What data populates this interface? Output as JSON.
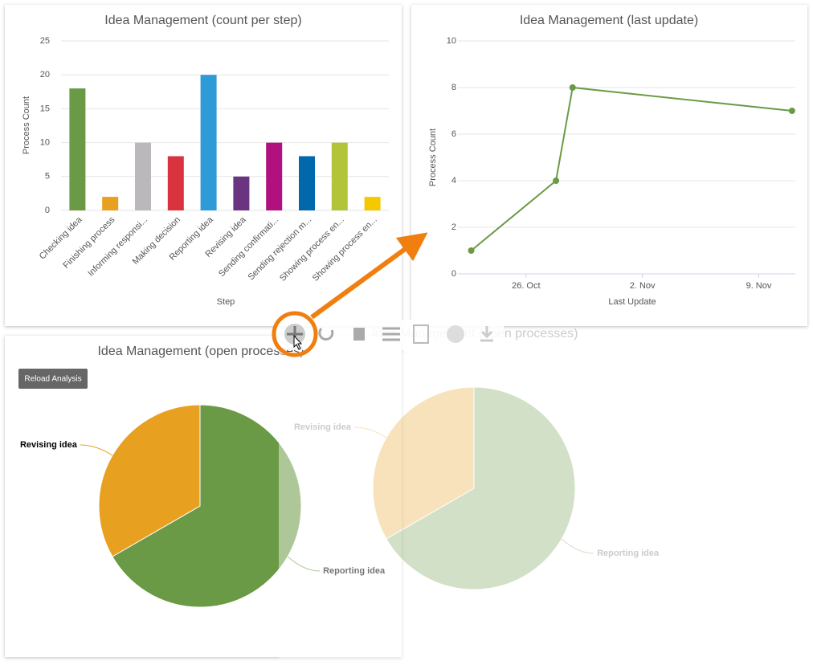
{
  "chart_data": [
    {
      "type": "bar",
      "title": "Idea Management (count per step)",
      "x_label": "Step",
      "y_label": "Process Count",
      "categories": [
        "Checking idea",
        "Finishing process",
        "Informing responsi...",
        "Making decision",
        "Reporting idea",
        "Revising idea",
        "Sending confirmati...",
        "Sending rejection m...",
        "Showing process en...",
        "Showing process en..."
      ],
      "values": [
        18,
        2,
        10,
        8,
        20,
        5,
        10,
        8,
        10,
        2
      ],
      "colors": [
        "#6a9a45",
        "#e8a020",
        "#bbb8bb",
        "#d9333f",
        "#2e9bd6",
        "#6b3480",
        "#b0117f",
        "#0068ab",
        "#b2c43a",
        "#f5c800"
      ],
      "ylim": [
        0,
        25
      ],
      "yticks": [
        0,
        5,
        10,
        15,
        20,
        25
      ],
      "grid": true
    },
    {
      "type": "line",
      "title": "Idea Management (last update)",
      "x_label": "Last Update",
      "y_label": "Process Count",
      "x": [
        22.7,
        27.8,
        28.8,
        42.0
      ],
      "values": [
        1,
        4,
        8,
        7
      ],
      "color": "#6a9a45",
      "xlim": [
        21.9,
        42.2
      ],
      "xticks": [
        {
          "value": 26,
          "label": "26. Oct"
        },
        {
          "value": 33,
          "label": "2. Nov"
        },
        {
          "value": 40,
          "label": "9. Nov"
        }
      ],
      "ylim": [
        0,
        10
      ],
      "yticks": [
        0,
        2,
        4,
        6,
        8,
        10
      ],
      "grid": true
    },
    {
      "type": "pie",
      "title": "Idea Management (open processes)",
      "categories": [
        "Reporting idea",
        "Revising idea"
      ],
      "values": [
        10,
        5
      ],
      "colors": [
        "#6a9a45",
        "#e8a020"
      ]
    }
  ],
  "button": "Reload Analysis"
}
